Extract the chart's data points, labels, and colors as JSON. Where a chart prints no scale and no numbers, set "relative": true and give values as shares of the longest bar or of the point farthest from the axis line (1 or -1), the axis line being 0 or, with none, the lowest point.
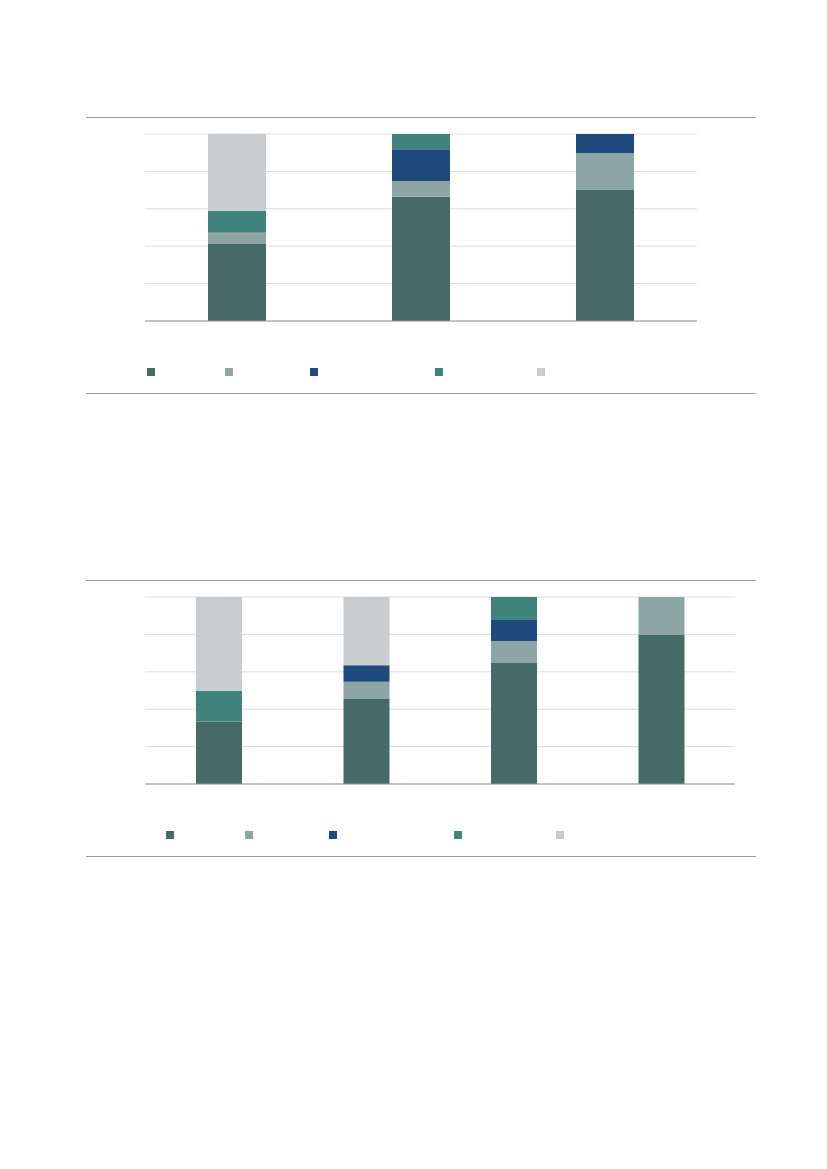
{
  "chart_data": [
    {
      "type": "bar",
      "stacked": true,
      "relative": true,
      "grid": "y",
      "categories": [
        null,
        null,
        null
      ],
      "series": [
        {
          "color": "#466b67",
          "values": [
            0.412,
            0.664,
            0.7
          ]
        },
        {
          "color": "#8da6a4",
          "values": [
            0.06,
            0.085,
            0.197
          ]
        },
        {
          "color": "#1f4a7e",
          "values": [
            null,
            0.169,
            0.103
          ]
        },
        {
          "color": "#40837a",
          "values": [
            0.117,
            0.082,
            null
          ]
        },
        {
          "color": "#c9cdd0",
          "values": [
            0.411,
            null,
            null
          ]
        }
      ]
    },
    {
      "type": "bar",
      "stacked": true,
      "relative": true,
      "grid": "y",
      "categories": [
        null,
        null,
        null,
        null
      ],
      "series": [
        {
          "color": "#466b67",
          "values": [
            0.334,
            0.455,
            0.647,
            0.8
          ]
        },
        {
          "color": "#8da6a4",
          "values": [
            null,
            0.092,
            0.118,
            0.2
          ]
        },
        {
          "color": "#1f4a7e",
          "values": [
            null,
            0.088,
            0.116,
            null
          ]
        },
        {
          "color": "#40837a",
          "values": [
            0.164,
            null,
            0.119,
            null
          ]
        },
        {
          "color": "#c9cdd0",
          "values": [
            0.502,
            0.365,
            null,
            null
          ]
        }
      ]
    }
  ]
}
